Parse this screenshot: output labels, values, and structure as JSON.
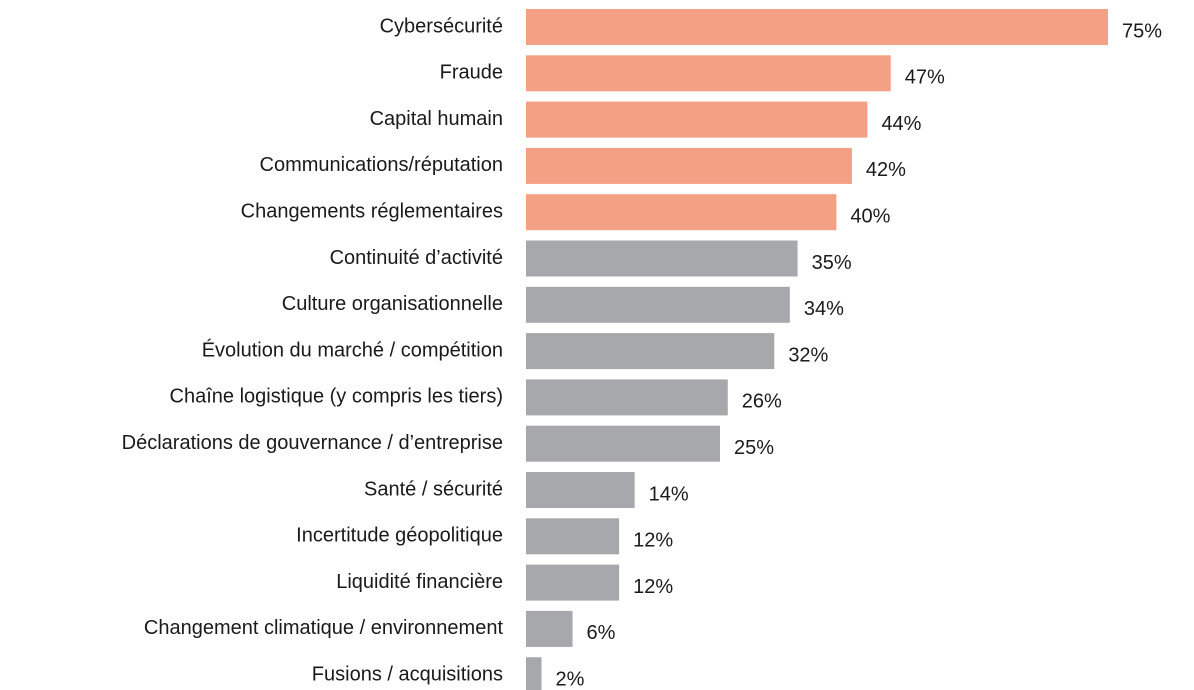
{
  "chart_data": {
    "type": "barh",
    "categories": [
      "Cybersécurité",
      "Fraude",
      "Capital humain",
      "Communications/réputation",
      "Changements réglementaires",
      "Continuité d’activité",
      "Culture organisationnelle",
      "Évolution du marché / compétition",
      "Chaîne logistique (y compris les tiers)",
      "Déclarations de gouvernance / d’entreprise",
      "Santé / sécurité",
      "Incertitude géopolitique",
      "Liquidité financière",
      "Changement climatique / environnement",
      "Fusions / acquisitions"
    ],
    "values": [
      75,
      47,
      44,
      42,
      40,
      35,
      34,
      32,
      26,
      25,
      14,
      12,
      12,
      6,
      2
    ],
    "value_labels": [
      "75%",
      "47%",
      "44%",
      "42%",
      "40%",
      "35%",
      "34%",
      "32%",
      "26%",
      "25%",
      "14%",
      "12%",
      "12%",
      "6%",
      "2%"
    ],
    "colors": [
      "#f4a084",
      "#f4a084",
      "#f4a084",
      "#f4a084",
      "#f4a084",
      "#a7a8ab",
      "#a7a8ab",
      "#a7a8ab",
      "#a7a8ab",
      "#a7a8ab",
      "#a7a8ab",
      "#a7a8ab",
      "#a7a8ab",
      "#a7a8ab",
      "#a7a8ab"
    ]
  }
}
